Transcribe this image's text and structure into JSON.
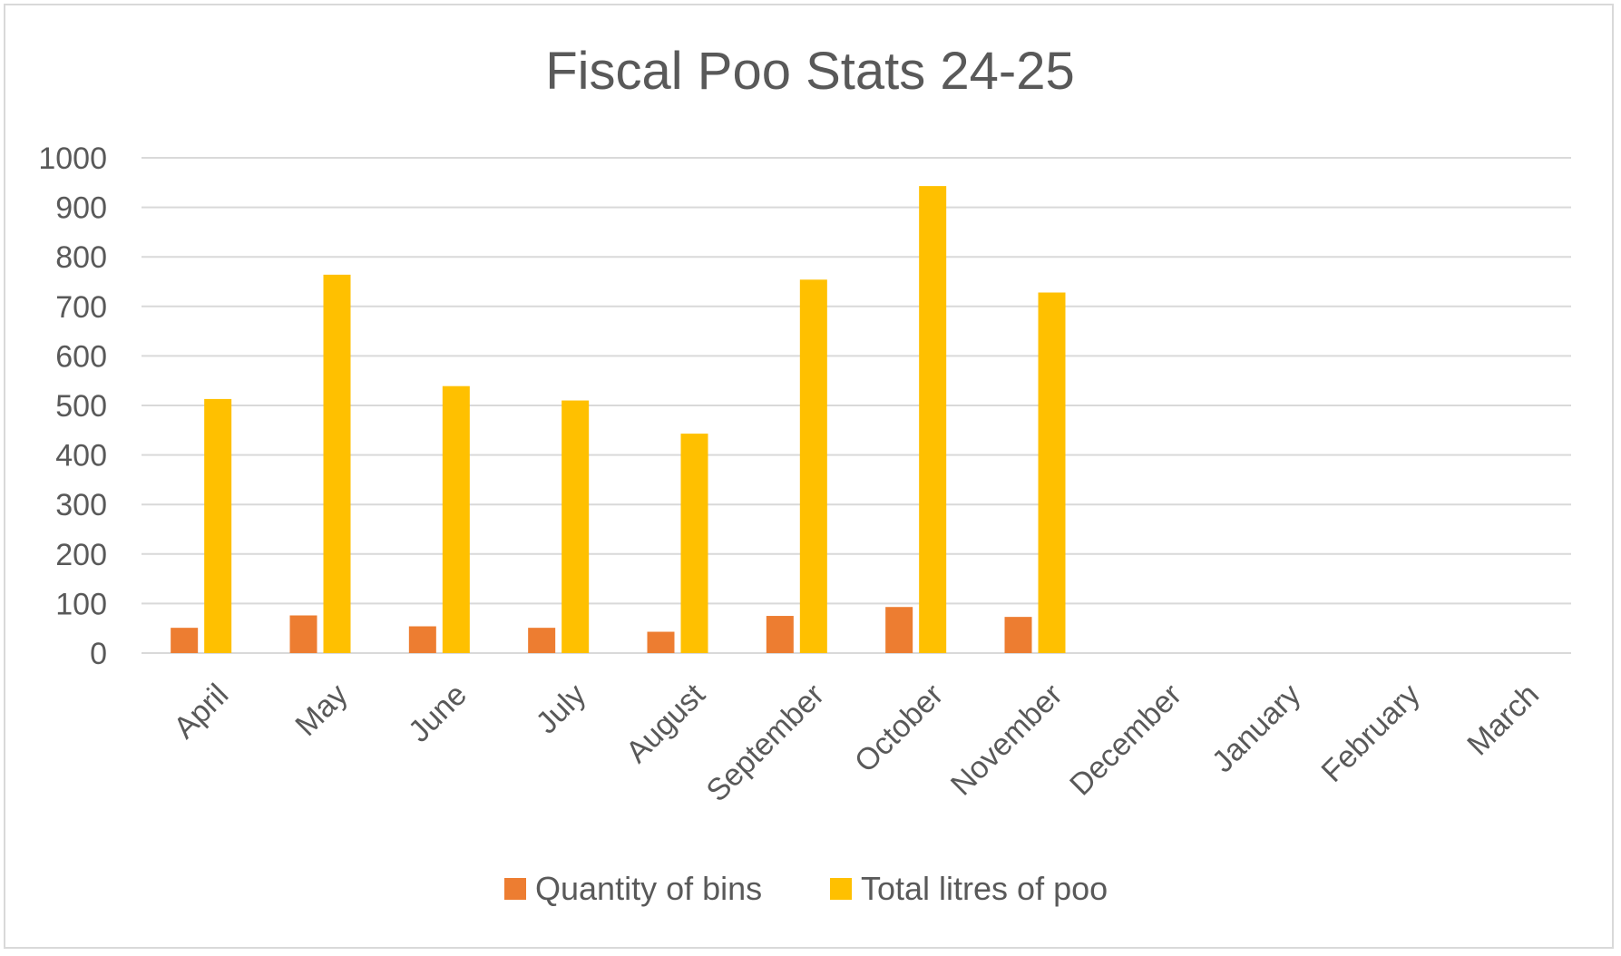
{
  "chart_data": {
    "type": "bar",
    "title": "Fiscal Poo Stats 24-25",
    "xlabel": "",
    "ylabel": "",
    "categories": [
      "April",
      "May",
      "June",
      "July",
      "August",
      "September",
      "October",
      "November",
      "December",
      "January",
      "February",
      "March"
    ],
    "series": [
      {
        "name": "Quantity of bins",
        "color": "#ED7D31",
        "values": [
          51,
          76,
          54,
          51,
          43,
          75,
          93,
          73,
          null,
          null,
          null,
          null
        ]
      },
      {
        "name": "Total litres of poo",
        "color": "#FFC000",
        "values": [
          513,
          764,
          539,
          510,
          443,
          754,
          943,
          728,
          null,
          null,
          null,
          null
        ]
      }
    ],
    "ylim": [
      0,
      1000
    ],
    "yticks": [
      0,
      100,
      200,
      300,
      400,
      500,
      600,
      700,
      800,
      900,
      1000
    ],
    "grid": true,
    "legend_position": "bottom",
    "colors": {
      "gridline": "#d9d9d9",
      "text": "#595959",
      "frame": "#d9d9d9"
    }
  }
}
